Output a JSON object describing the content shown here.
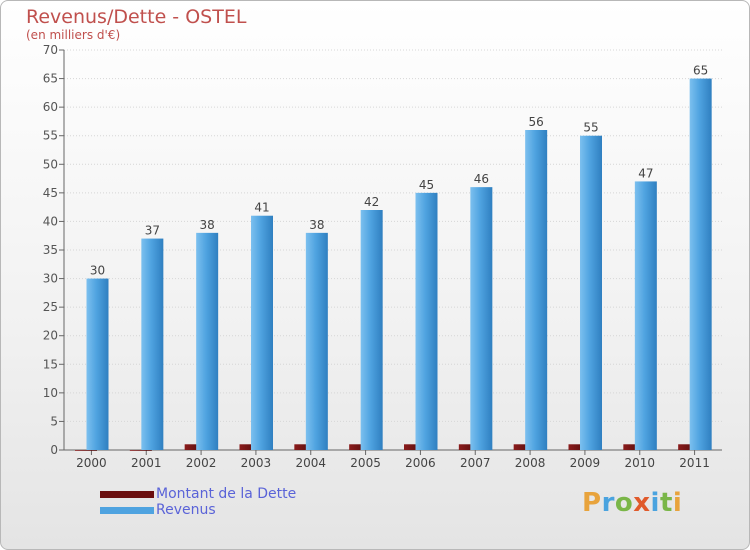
{
  "header": {
    "title": "Revenus/Dette - OSTEL",
    "subtitle": "(en milliers d'€)"
  },
  "chart_data": {
    "type": "bar",
    "title": "Revenus/Dette - OSTEL",
    "ylabel": "(en milliers d'€)",
    "xlabel": "",
    "ylim": [
      0,
      70
    ],
    "yticks": [
      0,
      5,
      10,
      15,
      20,
      25,
      30,
      35,
      40,
      45,
      50,
      55,
      60,
      65,
      70
    ],
    "grid": true,
    "categories": [
      "2000",
      "2001",
      "2002",
      "2003",
      "2004",
      "2005",
      "2006",
      "2007",
      "2008",
      "2009",
      "2010",
      "2011"
    ],
    "series": [
      {
        "name": "Montant de la Dette",
        "color": "#6b0f0f",
        "values": [
          0,
          0,
          1,
          1,
          1,
          1,
          1,
          1,
          1,
          1,
          1,
          1
        ]
      },
      {
        "name": "Revenus",
        "color": "#4fa3e0",
        "values": [
          30,
          37,
          38,
          41,
          38,
          42,
          45,
          46,
          56,
          55,
          47,
          65
        ]
      }
    ]
  },
  "legend": {
    "items": [
      {
        "label": "Montant de la Dette",
        "color": "#6b0f0f"
      },
      {
        "label": "Revenus",
        "color": "#4fa3e0"
      }
    ]
  },
  "logo": {
    "letters": [
      "P",
      "r",
      "o",
      "x",
      "i",
      "t",
      "i"
    ],
    "colors": [
      "#e8a33c",
      "#4aa3df",
      "#7ab648",
      "#e05a2b",
      "#4aa3df",
      "#7ab648",
      "#e8a33c"
    ]
  }
}
